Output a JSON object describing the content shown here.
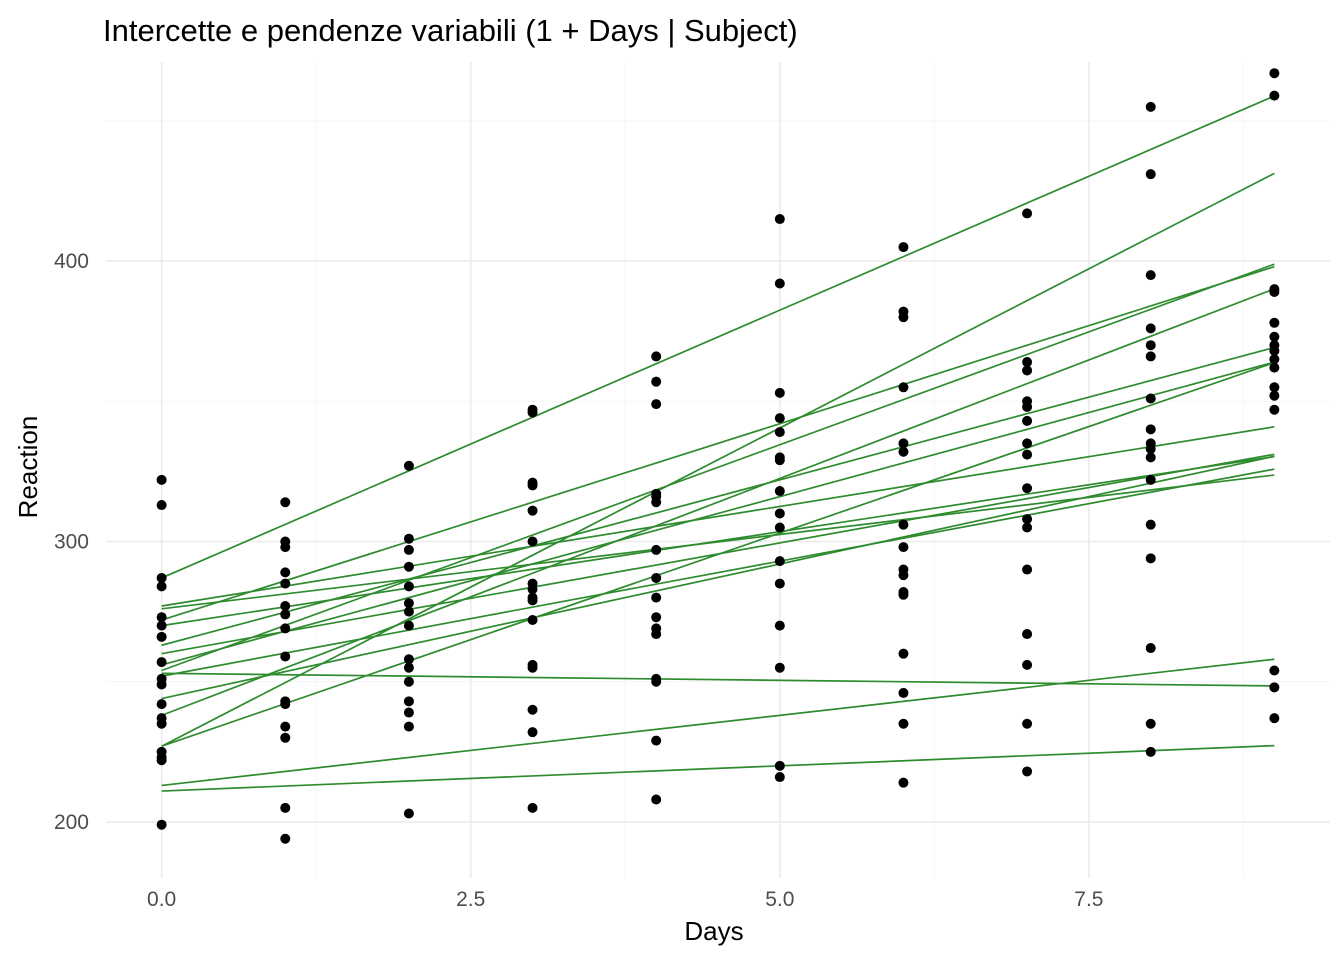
{
  "chart_data": {
    "type": "scatter",
    "title": "Intercette e pendenze variabili (1 + Days | Subject)",
    "xlabel": "Days",
    "ylabel": "Reaction",
    "xlim": [
      -0.45,
      9.45
    ],
    "ylim": [
      180,
      471
    ],
    "x_ticks": [
      0,
      2.5,
      5,
      7.5
    ],
    "x_tick_labels": [
      "0.0",
      "2.5",
      "5.0",
      "7.5"
    ],
    "y_ticks": [
      200,
      300,
      400
    ],
    "y_tick_labels": [
      "200",
      "300",
      "400"
    ],
    "grid": true,
    "legend": "none",
    "point_color": "#000000",
    "line_color": "#2e8b2e",
    "points": [
      [
        0,
        322
      ],
      [
        0,
        313
      ],
      [
        0,
        287
      ],
      [
        0,
        284
      ],
      [
        0,
        273
      ],
      [
        0,
        270
      ],
      [
        0,
        266
      ],
      [
        0,
        257
      ],
      [
        0,
        251
      ],
      [
        0,
        249
      ],
      [
        0,
        242
      ],
      [
        0,
        237
      ],
      [
        0,
        235
      ],
      [
        0,
        225
      ],
      [
        0,
        223
      ],
      [
        0,
        222
      ],
      [
        0,
        199
      ],
      [
        1,
        314
      ],
      [
        1,
        300
      ],
      [
        1,
        298
      ],
      [
        1,
        289
      ],
      [
        1,
        285
      ],
      [
        1,
        277
      ],
      [
        1,
        274
      ],
      [
        1,
        269
      ],
      [
        1,
        259
      ],
      [
        1,
        243
      ],
      [
        1,
        242
      ],
      [
        1,
        234
      ],
      [
        1,
        230
      ],
      [
        1,
        205
      ],
      [
        1,
        194
      ],
      [
        2,
        327
      ],
      [
        2,
        301
      ],
      [
        2,
        297
      ],
      [
        2,
        291
      ],
      [
        2,
        284
      ],
      [
        2,
        278
      ],
      [
        2,
        275
      ],
      [
        2,
        270
      ],
      [
        2,
        258
      ],
      [
        2,
        255
      ],
      [
        2,
        250
      ],
      [
        2,
        243
      ],
      [
        2,
        239
      ],
      [
        2,
        234
      ],
      [
        2,
        203
      ],
      [
        3,
        347
      ],
      [
        3,
        346
      ],
      [
        3,
        321
      ],
      [
        3,
        320
      ],
      [
        3,
        311
      ],
      [
        3,
        300
      ],
      [
        3,
        285
      ],
      [
        3,
        283
      ],
      [
        3,
        280
      ],
      [
        3,
        279
      ],
      [
        3,
        272
      ],
      [
        3,
        256
      ],
      [
        3,
        255
      ],
      [
        3,
        240
      ],
      [
        3,
        232
      ],
      [
        3,
        205
      ],
      [
        4,
        366
      ],
      [
        4,
        357
      ],
      [
        4,
        349
      ],
      [
        4,
        317
      ],
      [
        4,
        316
      ],
      [
        4,
        314
      ],
      [
        4,
        297
      ],
      [
        4,
        287
      ],
      [
        4,
        280
      ],
      [
        4,
        273
      ],
      [
        4,
        269
      ],
      [
        4,
        267
      ],
      [
        4,
        251
      ],
      [
        4,
        250
      ],
      [
        4,
        229
      ],
      [
        4,
        208
      ],
      [
        5,
        415
      ],
      [
        5,
        392
      ],
      [
        5,
        353
      ],
      [
        5,
        344
      ],
      [
        5,
        339
      ],
      [
        5,
        330
      ],
      [
        5,
        329
      ],
      [
        5,
        318
      ],
      [
        5,
        310
      ],
      [
        5,
        305
      ],
      [
        5,
        293
      ],
      [
        5,
        285
      ],
      [
        5,
        270
      ],
      [
        5,
        255
      ],
      [
        5,
        220
      ],
      [
        5,
        216
      ],
      [
        6,
        405
      ],
      [
        6,
        382
      ],
      [
        6,
        380
      ],
      [
        6,
        355
      ],
      [
        6,
        335
      ],
      [
        6,
        332
      ],
      [
        6,
        306
      ],
      [
        6,
        298
      ],
      [
        6,
        290
      ],
      [
        6,
        288
      ],
      [
        6,
        282
      ],
      [
        6,
        281
      ],
      [
        6,
        260
      ],
      [
        6,
        246
      ],
      [
        6,
        235
      ],
      [
        6,
        214
      ],
      [
        7,
        417
      ],
      [
        7,
        364
      ],
      [
        7,
        361
      ],
      [
        7,
        350
      ],
      [
        7,
        348
      ],
      [
        7,
        343
      ],
      [
        7,
        335
      ],
      [
        7,
        331
      ],
      [
        7,
        319
      ],
      [
        7,
        308
      ],
      [
        7,
        305
      ],
      [
        7,
        290
      ],
      [
        7,
        267
      ],
      [
        7,
        256
      ],
      [
        7,
        235
      ],
      [
        7,
        218
      ],
      [
        8,
        455
      ],
      [
        8,
        431
      ],
      [
        8,
        395
      ],
      [
        8,
        376
      ],
      [
        8,
        370
      ],
      [
        8,
        366
      ],
      [
        8,
        351
      ],
      [
        8,
        340
      ],
      [
        8,
        335
      ],
      [
        8,
        333
      ],
      [
        8,
        330
      ],
      [
        8,
        322
      ],
      [
        8,
        306
      ],
      [
        8,
        294
      ],
      [
        8,
        262
      ],
      [
        8,
        235
      ],
      [
        8,
        225
      ],
      [
        9,
        467
      ],
      [
        9,
        459
      ],
      [
        9,
        390
      ],
      [
        9,
        389
      ],
      [
        9,
        378
      ],
      [
        9,
        373
      ],
      [
        9,
        370
      ],
      [
        9,
        368
      ],
      [
        9,
        365
      ],
      [
        9,
        362
      ],
      [
        9,
        355
      ],
      [
        9,
        352
      ],
      [
        9,
        347
      ],
      [
        9,
        254
      ],
      [
        9,
        248
      ],
      [
        9,
        237
      ]
    ],
    "fitted_lines": [
      {
        "intercept": 287,
        "slope": 19.1
      },
      {
        "intercept": 227,
        "slope": 22.7
      },
      {
        "intercept": 254,
        "slope": 16.1
      },
      {
        "intercept": 272,
        "slope": 14.0
      },
      {
        "intercept": 238,
        "slope": 16.9
      },
      {
        "intercept": 227,
        "slope": 15.2
      },
      {
        "intercept": 263,
        "slope": 11.8
      },
      {
        "intercept": 256,
        "slope": 12.0
      },
      {
        "intercept": 277,
        "slope": 7.1
      },
      {
        "intercept": 276,
        "slope": 5.3
      },
      {
        "intercept": 260,
        "slope": 7.9
      },
      {
        "intercept": 270,
        "slope": 6.7
      },
      {
        "intercept": 244,
        "slope": 9.6
      },
      {
        "intercept": 252,
        "slope": 8.2
      },
      {
        "intercept": 253,
        "slope": -0.5
      },
      {
        "intercept": 213,
        "slope": 5.0
      },
      {
        "intercept": 211,
        "slope": 1.8
      }
    ]
  }
}
